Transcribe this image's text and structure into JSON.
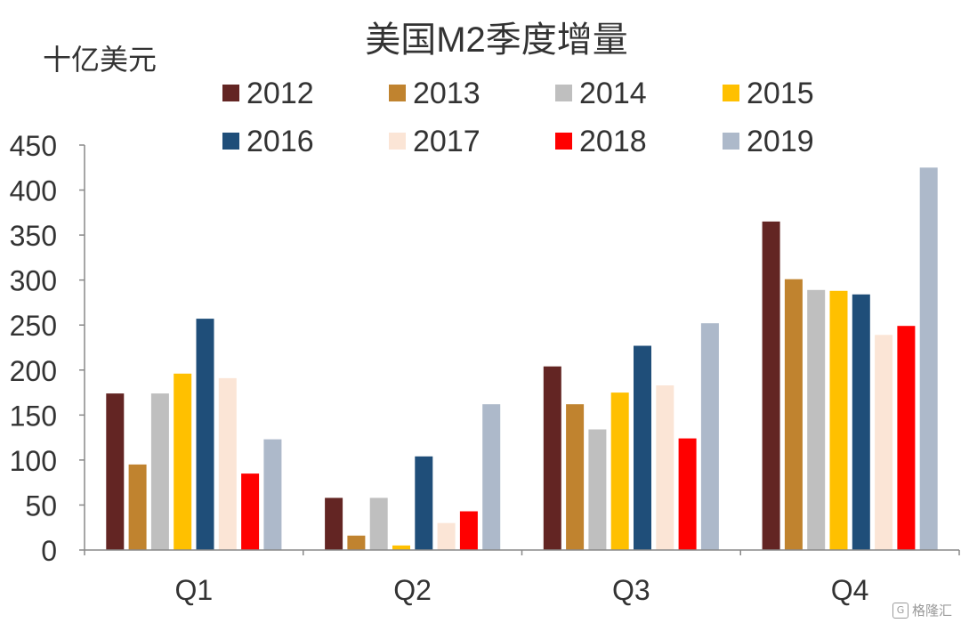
{
  "chart_data": {
    "type": "bar",
    "title": "美国M2季度增量",
    "ylabel": "十亿美元",
    "xlabel": "",
    "categories": [
      "Q1",
      "Q2",
      "Q3",
      "Q4"
    ],
    "ylim": [
      0,
      450
    ],
    "yticks": [
      0,
      50,
      100,
      150,
      200,
      250,
      300,
      350,
      400,
      450
    ],
    "legend_position": "top",
    "grid": false,
    "series": [
      {
        "name": "2012",
        "color": "#632523",
        "values": [
          174,
          58,
          204,
          365
        ]
      },
      {
        "name": "2013",
        "color": "#C0832F",
        "values": [
          95,
          16,
          162,
          301
        ]
      },
      {
        "name": "2014",
        "color": "#BFBFBF",
        "values": [
          174,
          58,
          134,
          289
        ]
      },
      {
        "name": "2015",
        "color": "#FFC000",
        "values": [
          196,
          5,
          175,
          288
        ]
      },
      {
        "name": "2016",
        "color": "#1F4E79",
        "values": [
          257,
          104,
          227,
          284
        ]
      },
      {
        "name": "2017",
        "color": "#FBE5D6",
        "values": [
          191,
          30,
          183,
          239
        ]
      },
      {
        "name": "2018",
        "color": "#FF0000",
        "values": [
          85,
          43,
          124,
          249
        ]
      },
      {
        "name": "2019",
        "color": "#ADB9CA",
        "values": [
          123,
          162,
          252,
          425
        ]
      }
    ]
  },
  "watermark": {
    "icon": "gelonghui-logo-icon",
    "text": "格隆汇"
  }
}
